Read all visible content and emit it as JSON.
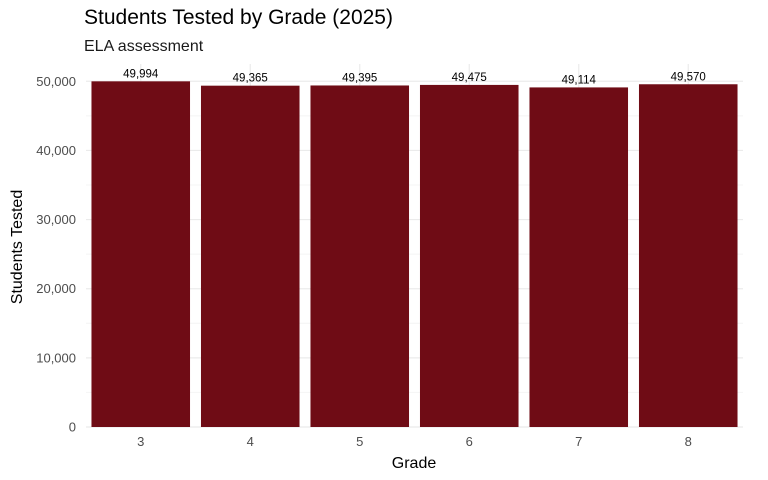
{
  "chart_data": {
    "type": "bar",
    "title": "Students Tested by Grade (2025)",
    "subtitle": "ELA assessment",
    "xlabel": "Grade",
    "ylabel": "Students Tested",
    "categories": [
      "3",
      "4",
      "5",
      "6",
      "7",
      "8"
    ],
    "values": [
      49994,
      49365,
      49395,
      49475,
      49114,
      49570
    ],
    "data_labels": [
      "49,994",
      "49,365",
      "49,395",
      "49,475",
      "49,114",
      "49,570"
    ],
    "ylim": [
      0,
      52500
    ],
    "yticks": [
      0,
      10000,
      20000,
      30000,
      40000,
      50000
    ],
    "ytick_labels": [
      "0",
      "10,000",
      "20,000",
      "30,000",
      "40,000",
      "50,000"
    ],
    "grid": true,
    "legend": "none",
    "colors": {
      "bar": "#6F0C15",
      "grid_major": "#EBEBEB",
      "grid_minor": "#F4F4F4"
    }
  }
}
